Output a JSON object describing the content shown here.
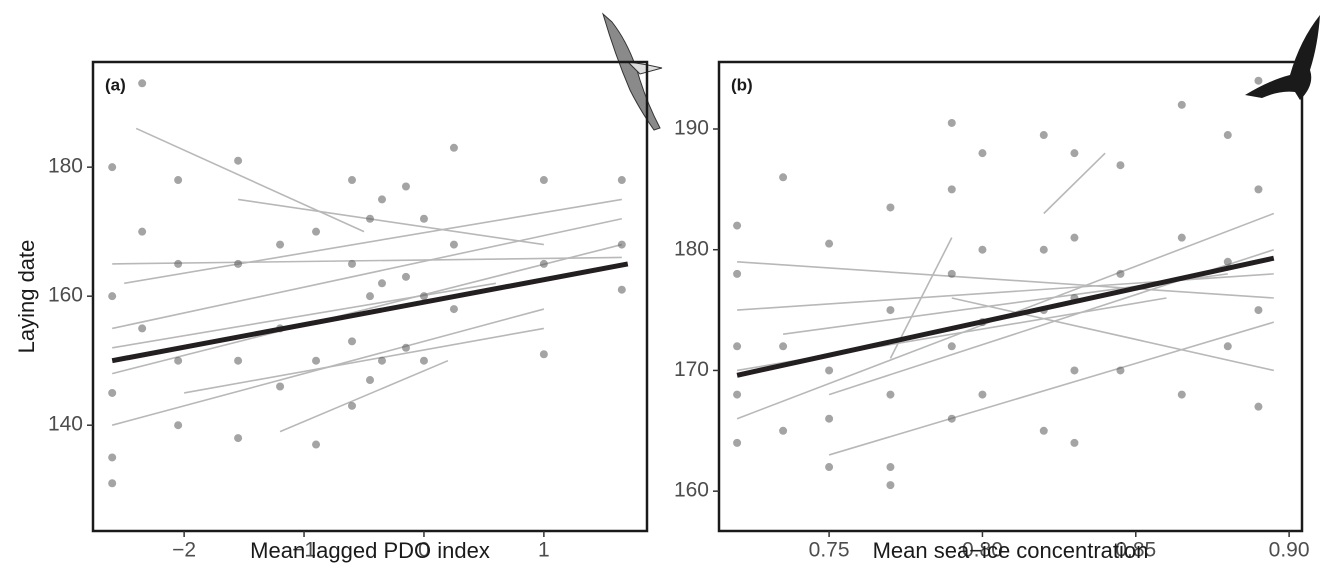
{
  "chart_data": [
    {
      "type": "scatter",
      "annotation": "(a)",
      "x_label": "Mean lagged PDO index",
      "y_label": "Laying date",
      "xlim": [
        -2.76,
        1.86
      ],
      "ylim": [
        123.6,
        196.3
      ],
      "xticks": [
        {
          "value": -2,
          "label": "−2"
        },
        {
          "value": -1,
          "label": "−1"
        },
        0,
        1
      ],
      "yticks": [
        140,
        160,
        180
      ],
      "series": [
        {
          "type": "line",
          "color": "#b8b8b8",
          "x": [
            -2.4,
            -0.5
          ],
          "values": [
            186,
            170
          ]
        },
        {
          "type": "line",
          "color": "#b8b8b8",
          "x": [
            -2.6,
            1.65
          ],
          "values": [
            155,
            172
          ]
        },
        {
          "type": "line",
          "color": "#b8b8b8",
          "x": [
            -2.6,
            1.0
          ],
          "values": [
            140,
            158
          ]
        },
        {
          "type": "line",
          "color": "#b8b8b8",
          "x": [
            -2.5,
            1.65
          ],
          "values": [
            162,
            175
          ]
        },
        {
          "type": "line",
          "color": "#b8b8b8",
          "x": [
            -2.6,
            1.65
          ],
          "values": [
            148,
            168
          ]
        },
        {
          "type": "line",
          "color": "#b8b8b8",
          "x": [
            -2.0,
            1.0
          ],
          "values": [
            145,
            155
          ]
        },
        {
          "type": "line",
          "color": "#b8b8b8",
          "x": [
            -1.55,
            1.0
          ],
          "values": [
            175,
            168
          ]
        },
        {
          "type": "line",
          "color": "#b8b8b8",
          "x": [
            -2.6,
            0.6
          ],
          "values": [
            152,
            162
          ]
        },
        {
          "type": "line",
          "color": "#b8b8b8",
          "x": [
            -1.2,
            0.2
          ],
          "values": [
            139,
            150
          ]
        },
        {
          "type": "line",
          "color": "#b8b8b8",
          "x": [
            -2.6,
            1.65
          ],
          "values": [
            165,
            166
          ]
        },
        {
          "type": "scatter",
          "color": "#5a5a5a",
          "x": [
            -2.6,
            -2.6,
            -2.6,
            -2.6,
            -2.6,
            -2.35,
            -2.35,
            -2.35,
            -2.05,
            -2.05,
            -2.05,
            -2.05,
            -1.55,
            -1.55,
            -1.55,
            -1.55,
            -1.2,
            -1.2,
            -1.2,
            -0.9,
            -0.9,
            -0.9,
            -0.6,
            -0.6,
            -0.6,
            -0.6,
            -0.45,
            -0.45,
            -0.45,
            -0.35,
            -0.35,
            -0.35,
            -0.15,
            -0.15,
            -0.15,
            0.0,
            0.0,
            0.0,
            0.25,
            0.25,
            0.25,
            1.0,
            1.0,
            1.0,
            1.65,
            1.65,
            1.65
          ],
          "values": [
            180,
            160,
            145,
            131,
            135,
            193,
            170,
            155,
            178,
            165,
            150,
            140,
            181,
            165,
            150,
            138,
            168,
            155,
            146,
            170,
            150,
            137,
            178,
            165,
            153,
            143,
            172,
            160,
            147,
            175,
            162,
            150,
            177,
            163,
            152,
            172,
            160,
            150,
            183,
            168,
            158,
            178,
            165,
            151,
            178,
            168,
            161
          ]
        },
        {
          "type": "line",
          "color": "#231f20",
          "x": [
            -2.6,
            1.7
          ],
          "values": [
            150,
            165
          ]
        }
      ]
    },
    {
      "type": "scatter",
      "annotation": "(b)",
      "x_label": "Mean sea−ice concentration",
      "xlim": [
        0.7141,
        0.9042
      ],
      "ylim": [
        156.7,
        195.55
      ],
      "xticks": [
        0.75,
        {
          "value": 0.8,
          "label": "0.80"
        },
        0.85,
        {
          "value": 0.9,
          "label": "0.90"
        }
      ],
      "yticks": [
        160,
        170,
        180,
        190
      ],
      "series": [
        {
          "type": "line",
          "color": "#b8b8b8",
          "x": [
            0.72,
            0.895
          ],
          "values": [
            179,
            176
          ]
        },
        {
          "type": "line",
          "color": "#b8b8b8",
          "x": [
            0.72,
            0.895
          ],
          "values": [
            166,
            183
          ]
        },
        {
          "type": "line",
          "color": "#b8b8b8",
          "x": [
            0.735,
            0.88
          ],
          "values": [
            173,
            178
          ]
        },
        {
          "type": "line",
          "color": "#b8b8b8",
          "x": [
            0.75,
            0.895
          ],
          "values": [
            168,
            180
          ]
        },
        {
          "type": "line",
          "color": "#b8b8b8",
          "x": [
            0.72,
            0.86
          ],
          "values": [
            170,
            176
          ]
        },
        {
          "type": "line",
          "color": "#b8b8b8",
          "x": [
            0.77,
            0.79
          ],
          "values": [
            171,
            181
          ]
        },
        {
          "type": "line",
          "color": "#b8b8b8",
          "x": [
            0.82,
            0.84
          ],
          "values": [
            183,
            188
          ]
        },
        {
          "type": "line",
          "color": "#b8b8b8",
          "x": [
            0.75,
            0.895
          ],
          "values": [
            163,
            174
          ]
        },
        {
          "type": "line",
          "color": "#b8b8b8",
          "x": [
            0.79,
            0.895
          ],
          "values": [
            176,
            170
          ]
        },
        {
          "type": "line",
          "color": "#b8b8b8",
          "x": [
            0.72,
            0.895
          ],
          "values": [
            175,
            178
          ]
        },
        {
          "type": "scatter",
          "color": "#5a5a5a",
          "x": [
            0.72,
            0.72,
            0.72,
            0.72,
            0.72,
            0.735,
            0.735,
            0.735,
            0.75,
            0.75,
            0.75,
            0.75,
            0.77,
            0.77,
            0.77,
            0.77,
            0.77,
            0.79,
            0.79,
            0.79,
            0.79,
            0.79,
            0.8,
            0.8,
            0.8,
            0.8,
            0.82,
            0.82,
            0.82,
            0.82,
            0.83,
            0.83,
            0.83,
            0.83,
            0.83,
            0.845,
            0.845,
            0.845,
            0.865,
            0.865,
            0.865,
            0.88,
            0.88,
            0.88,
            0.89,
            0.89,
            0.89,
            0.89
          ],
          "values": [
            182,
            178,
            172,
            168,
            164,
            186,
            172,
            165,
            180.5,
            170,
            166,
            162,
            183.5,
            175,
            168,
            162,
            160.5,
            190.5,
            185,
            178,
            172,
            166,
            188,
            180,
            174,
            168,
            189.5,
            180,
            175,
            165,
            188,
            181,
            176,
            170,
            164,
            187,
            178,
            170,
            192,
            181,
            168,
            189.5,
            179,
            172,
            194,
            185,
            175,
            167
          ]
        },
        {
          "type": "line",
          "color": "#231f20",
          "x": [
            0.72,
            0.895
          ],
          "values": [
            169.6,
            179.3
          ]
        }
      ]
    }
  ]
}
